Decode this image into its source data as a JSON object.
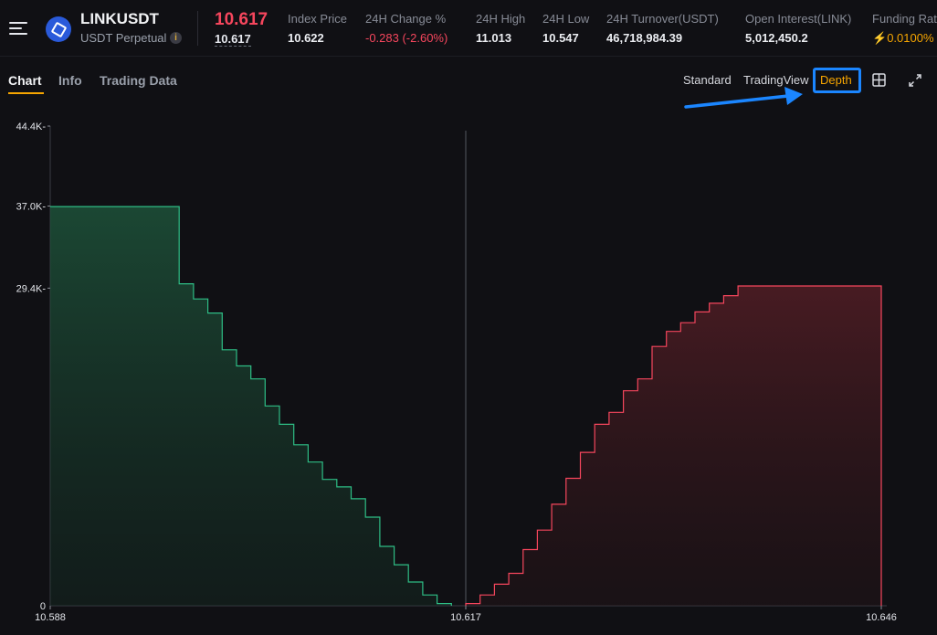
{
  "header": {
    "menu_icon": "hamburger-menu-icon",
    "coin_icon": "chainlink-logo-icon",
    "symbol": "LINKUSDT",
    "contract_type": "USDT Perpetual",
    "info_badge": "i",
    "last_price": "10.617",
    "mark_price": "10.617",
    "stats": [
      {
        "label": "Index Price",
        "value": "10.622"
      },
      {
        "label": "24H Change %",
        "value": "-0.283 (-2.60%)"
      },
      {
        "label": "24H High",
        "value": "11.013"
      },
      {
        "label": "24H Low",
        "value": "10.547"
      },
      {
        "label": "24H Turnover(USDT)",
        "value": "46,718,984.39"
      },
      {
        "label": "Open Interest(LINK)",
        "value": "5,012,450.2"
      },
      {
        "label": "Funding Rat",
        "value": "0.0100%"
      }
    ]
  },
  "tabs": [
    {
      "label": "Chart",
      "active": true
    },
    {
      "label": "Info",
      "active": false
    },
    {
      "label": "Trading Data",
      "active": false
    }
  ],
  "view_options": {
    "standard": "Standard",
    "tradingview": "TradingView",
    "depth": "Depth",
    "layout_icon": "grid-layout-icon",
    "fullscreen_icon": "expand-icon"
  },
  "colors": {
    "bid": "#2ebd85",
    "ask": "#f6465d",
    "accent": "#f7a600",
    "highlight": "#1b86ff"
  },
  "chart_data": {
    "type": "area",
    "x_ticks": [
      "10.588",
      "10.617",
      "10.646"
    ],
    "y_ticks": [
      "44.4K",
      "37.0K",
      "29.4K",
      "0"
    ],
    "xlim": [
      10.588,
      10.646
    ],
    "ylim": [
      0,
      44400
    ],
    "mid_price": 10.617,
    "series": [
      {
        "side": "bid",
        "x": [
          10.588,
          10.597,
          10.598,
          10.599,
          10.6,
          10.601,
          10.602,
          10.603,
          10.604,
          10.605,
          10.606,
          10.607,
          10.608,
          10.609,
          10.61,
          10.611,
          10.612,
          10.613,
          10.614,
          10.615,
          10.616
        ],
        "y": [
          36950,
          29800,
          28400,
          27100,
          23700,
          22200,
          21000,
          18500,
          16800,
          14900,
          13300,
          11700,
          11000,
          9900,
          8200,
          5500,
          3800,
          2200,
          1000,
          200,
          0
        ]
      },
      {
        "side": "ask",
        "x": [
          10.618,
          10.619,
          10.62,
          10.621,
          10.622,
          10.623,
          10.624,
          10.625,
          10.626,
          10.627,
          10.628,
          10.629,
          10.63,
          10.631,
          10.632,
          10.633,
          10.634,
          10.635,
          10.636,
          10.637,
          10.638,
          10.646
        ],
        "y": [
          200,
          1000,
          2000,
          3000,
          5200,
          7000,
          9400,
          11800,
          14200,
          16800,
          17900,
          19900,
          21000,
          24000,
          25400,
          26200,
          27200,
          28000,
          28700,
          29600,
          29600,
          29600
        ]
      }
    ]
  }
}
